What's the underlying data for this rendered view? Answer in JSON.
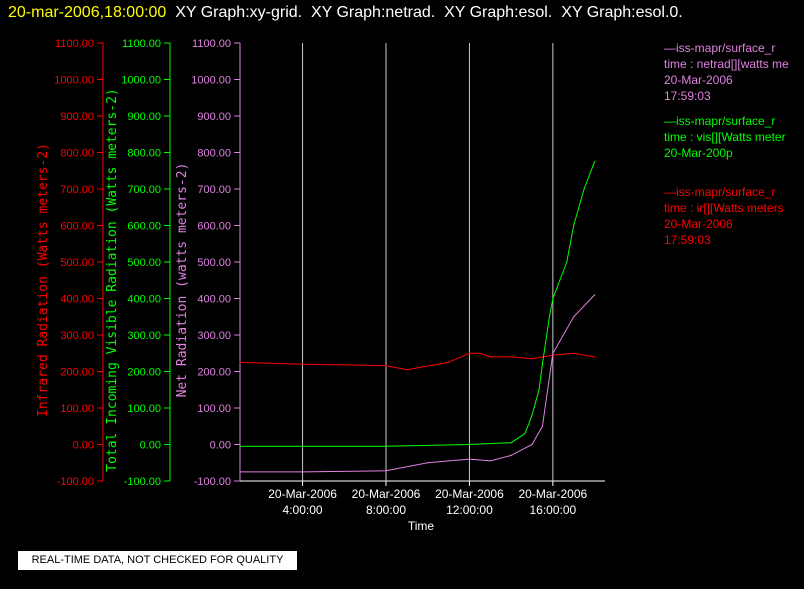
{
  "title": {
    "datetime": "20-mar-2006,18:00:00",
    "graphs": "XY Graph:xy-grid.  XY Graph:netrad.  XY Graph:esol.  XY Graph:esol.0."
  },
  "notice": "REAL-TIME DATA, NOT CHECKED FOR QUALITY",
  "legend": [
    {
      "lines": [
        "—iss-mapr/surface_r",
        "time : netrad[][watts me",
        "20-Mar-2006",
        "17:59:03"
      ],
      "color": "#e080e0"
    },
    {
      "lines": [
        "—iss-mapr/surface_r",
        "time : vis[][Watts meter",
        "20-Mar-200p"
      ],
      "color": "#00ff00"
    },
    {
      "lines": [
        "—iss-mapr/surface_r",
        "time : ir[][Watts meters",
        "20-Mar-2006",
        "17:59:03"
      ],
      "color": "#ff0000"
    }
  ],
  "chart_data": {
    "type": "line",
    "xlabel": "Time",
    "xlim": [
      "20-Mar-2006 01:00",
      "20-Mar-2006 18:30"
    ],
    "x_ticks": [
      {
        "date": "20-Mar-2006",
        "time": "4:00:00"
      },
      {
        "date": "20-Mar-2006",
        "time": "8:00:00"
      },
      {
        "date": "20-Mar-2006",
        "time": "12:00:00"
      },
      {
        "date": "20-Mar-2006",
        "time": "16:00:00"
      }
    ],
    "vertical_grid": true,
    "axes": [
      {
        "label": "Infrared Radiation (Watts meters-2)",
        "color": "#ff0000",
        "ticks": [
          "1100.00",
          "1000.00",
          "900.00",
          "800.00",
          "700.00",
          "600.00",
          "500.00",
          "400.00",
          "300.00",
          "200.00",
          "100.00",
          "0.00",
          "-100.00"
        ]
      },
      {
        "label": "Total Incoming Visible Radiation (Watts meters-2)",
        "color": "#00ff00",
        "ticks": [
          "1100.00",
          "1000.00",
          "900.00",
          "800.00",
          "700.00",
          "600.00",
          "500.00",
          "400.00",
          "300.00",
          "200.00",
          "100.00",
          "0.00",
          "-100.00"
        ]
      },
      {
        "label": "Net Radiation (watts meters-2)",
        "color": "#e080e0",
        "ticks": [
          "1100.00",
          "1000.00",
          "900.00",
          "800.00",
          "700.00",
          "600.00",
          "500.00",
          "400.00",
          "300.00",
          "200.00",
          "100.00",
          "0.00",
          "-100.00"
        ]
      }
    ],
    "ylim": [
      -100,
      1100
    ],
    "series": [
      {
        "color": "#ff0000",
        "x": [
          "20-Mar-2006 01:00",
          "20-Mar-2006 04:00",
          "20-Mar-2006 06:00",
          "20-Mar-2006 08:00",
          "20-Mar-2006 09:00",
          "20-Mar-2006 10:00",
          "20-Mar-2006 11:00",
          "20-Mar-2006 12:00",
          "20-Mar-2006 12:30",
          "20-Mar-2006 13:00",
          "20-Mar-2006 14:00",
          "20-Mar-2006 15:00",
          "20-Mar-2006 16:00",
          "20-Mar-2006 17:00",
          "20-Mar-2006 18:00"
        ],
        "values": [
          225,
          220,
          218,
          216,
          205,
          215,
          225,
          250,
          250,
          240,
          240,
          235,
          245,
          250,
          240
        ]
      },
      {
        "color": "#00ff00",
        "x": [
          "20-Mar-2006 01:00",
          "20-Mar-2006 04:00",
          "20-Mar-2006 08:00",
          "20-Mar-2006 12:00",
          "20-Mar-2006 14:00",
          "20-Mar-2006 14:40",
          "20-Mar-2006 15:00",
          "20-Mar-2006 15:20",
          "20-Mar-2006 15:30",
          "20-Mar-2006 15:50",
          "20-Mar-2006 16:00",
          "20-Mar-2006 16:40",
          "20-Mar-2006 17:00",
          "20-Mar-2006 17:30",
          "20-Mar-2006 18:00"
        ],
        "values": [
          -5,
          -5,
          -5,
          0,
          5,
          30,
          80,
          150,
          220,
          350,
          400,
          500,
          600,
          700,
          775
        ]
      },
      {
        "color": "#e080e0",
        "x": [
          "20-Mar-2006 01:00",
          "20-Mar-2006 04:00",
          "20-Mar-2006 08:00",
          "20-Mar-2006 10:00",
          "20-Mar-2006 12:00",
          "20-Mar-2006 13:00",
          "20-Mar-2006 14:00",
          "20-Mar-2006 15:00",
          "20-Mar-2006 15:30",
          "20-Mar-2006 16:00",
          "20-Mar-2006 17:00",
          "20-Mar-2006 18:00"
        ],
        "values": [
          -75,
          -75,
          -72,
          -50,
          -40,
          -45,
          -30,
          0,
          50,
          250,
          350,
          410
        ]
      }
    ]
  }
}
